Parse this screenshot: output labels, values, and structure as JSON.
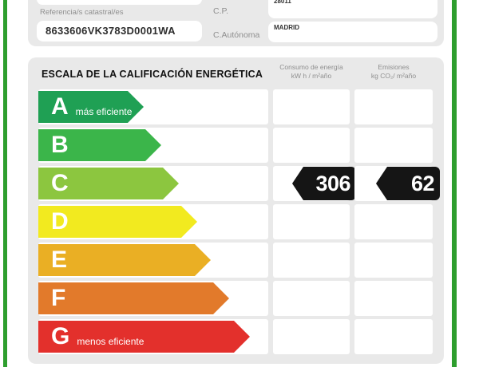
{
  "certificate": {
    "accent_green": "#2e9e2e",
    "form": {
      "cadastral": {
        "label": "Referencia/s catastral/es",
        "value": "8633606VK3783D0001WA"
      },
      "postal_code": {
        "label": "C.P.",
        "value": "28011"
      },
      "region": {
        "label": "C.Autónoma",
        "value": "MADRID"
      }
    },
    "scale": {
      "title": "ESCALA DE LA CALIFICACIÓN ENERGÉTICA",
      "consumption_header": {
        "line1": "Consumo de energía",
        "line2": "kW h / m²año"
      },
      "emissions_header": {
        "line1": "Emisiones",
        "line2": "kg CO₂/ m²año"
      },
      "ratings": [
        {
          "letter": "A",
          "note": "más eficiente",
          "color": "#1fa054"
        },
        {
          "letter": "B",
          "note": "",
          "color": "#3bb54a"
        },
        {
          "letter": "C",
          "note": "",
          "color": "#8cc63f"
        },
        {
          "letter": "D",
          "note": "",
          "color": "#f2ea1f"
        },
        {
          "letter": "E",
          "note": "",
          "color": "#eaaf24"
        },
        {
          "letter": "F",
          "note": "",
          "color": "#e27a2b"
        },
        {
          "letter": "G",
          "note": "menos eficiente",
          "color": "#e3302c"
        }
      ],
      "result": {
        "letter": "C",
        "consumption_value": "306",
        "emissions_value": "62",
        "tag_color": "#151515"
      }
    }
  }
}
